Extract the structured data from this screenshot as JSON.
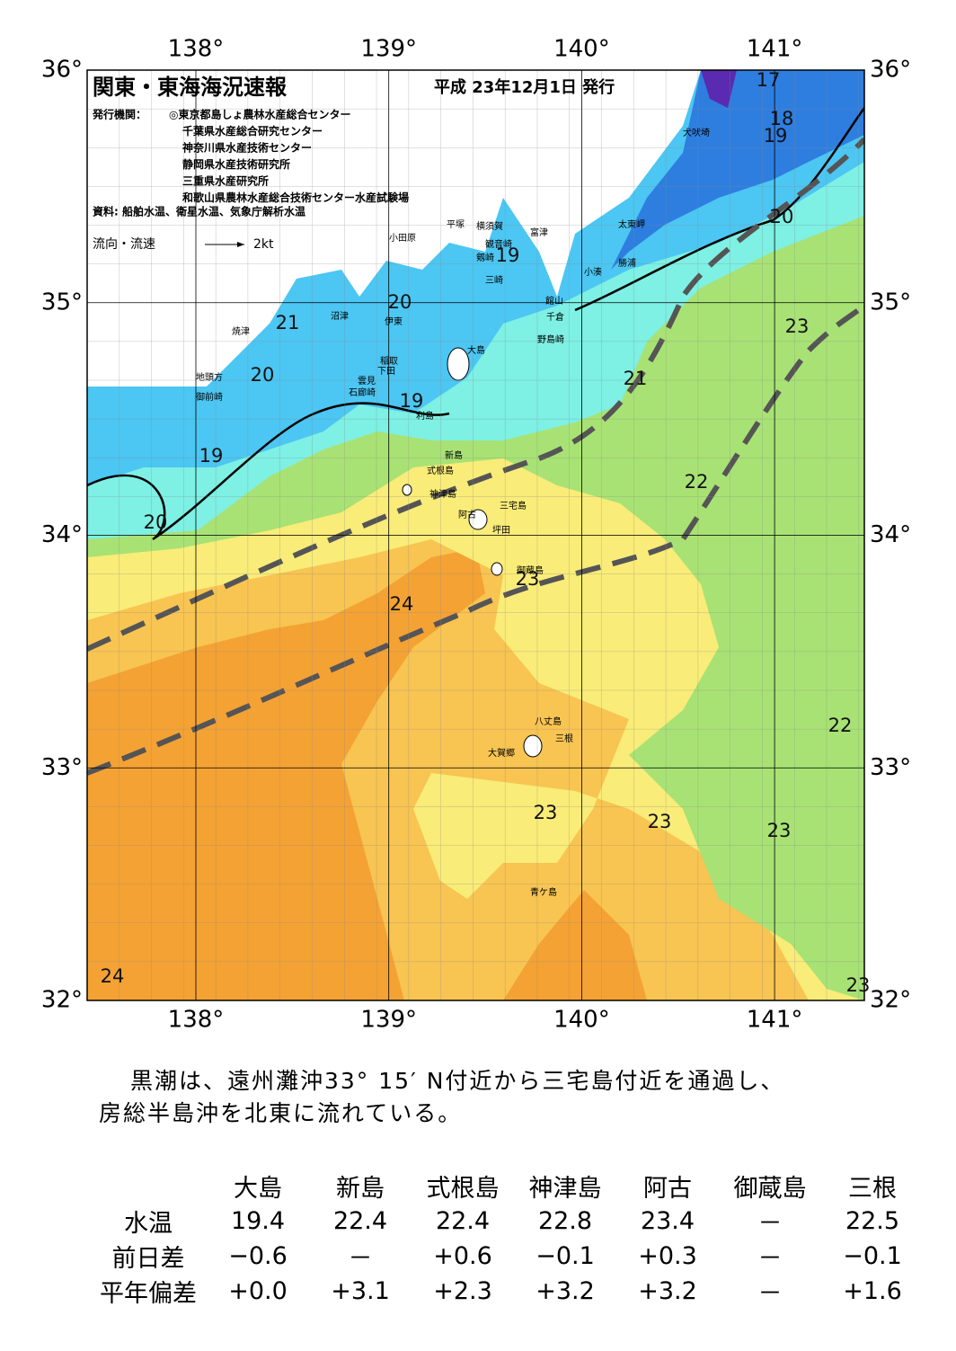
{
  "header": {
    "title": "関東・東海海況速報",
    "date": "平成 23年12月1日 発行",
    "publisher_label": "発行機関：",
    "publishers": [
      "◎東京都島しょ農林水産総合センター",
      "千葉県水産総合研究センター",
      "神奈川県水産技術センター",
      "静岡県水産技術研究所",
      "三重県水産研究所",
      "和歌山県農林水産総合技術センター水産試験場"
    ],
    "source": "資料: 船舶水温、衛星水温、気象庁解析水温",
    "legend_label": "流向・流速",
    "legend_speed": "2kt"
  },
  "map": {
    "lon_ticks": [
      {
        "value": 138,
        "label": "138°"
      },
      {
        "value": 139,
        "label": "139°"
      },
      {
        "value": 140,
        "label": "140°"
      },
      {
        "value": 141,
        "label": "141°"
      }
    ],
    "lat_ticks": [
      {
        "value": 36,
        "label": "36°"
      },
      {
        "value": 35,
        "label": "35°"
      },
      {
        "value": 34,
        "label": "34°"
      },
      {
        "value": 33,
        "label": "33°"
      },
      {
        "value": 32,
        "label": "32°"
      }
    ],
    "contour_labels": [
      "17",
      "18",
      "19",
      "20",
      "19",
      "20",
      "21",
      "20",
      "19",
      "19",
      "20",
      "21",
      "22",
      "23",
      "24",
      "23",
      "22",
      "23",
      "23",
      "23",
      "24",
      "23"
    ],
    "places": [
      "犬吠埼",
      "太東岬",
      "勝浦",
      "小湊",
      "館山",
      "千倉",
      "野島崎",
      "富津",
      "横須賀",
      "観音崎",
      "剱崎",
      "三崎",
      "平塚",
      "小田原",
      "伊東",
      "稲取",
      "下田",
      "雲見",
      "石廊崎",
      "沼津",
      "焼津",
      "地頭方",
      "御前崎",
      "大島",
      "利島",
      "新島",
      "式根島",
      "神津島",
      "三宅島",
      "阿古",
      "坪田",
      "御蔵島",
      "八丈島",
      "三根",
      "大賀郷",
      "青ケ島"
    ]
  },
  "description": [
    "黒潮は、遠州灘沖33° 15′ N付近から三宅島付近を通過し、",
    "房総半島沖を北東に流れている。"
  ],
  "table": {
    "columns": [
      "大島",
      "新島",
      "式根島",
      "神津島",
      "阿古",
      "御蔵島",
      "三根"
    ],
    "rows": [
      {
        "label": "水温",
        "cells": [
          "19.4",
          "22.4",
          "22.4",
          "22.8",
          "23.4",
          "－",
          "22.5"
        ]
      },
      {
        "label": "前日差",
        "cells": [
          "−0.6",
          "－",
          "+0.6",
          "−0.1",
          "+0.3",
          "－",
          "−0.1"
        ]
      },
      {
        "label": "平年偏差",
        "cells": [
          "+0.0",
          "+3.1",
          "+2.3",
          "+3.2",
          "+3.2",
          "－",
          "+1.6"
        ]
      }
    ]
  }
}
